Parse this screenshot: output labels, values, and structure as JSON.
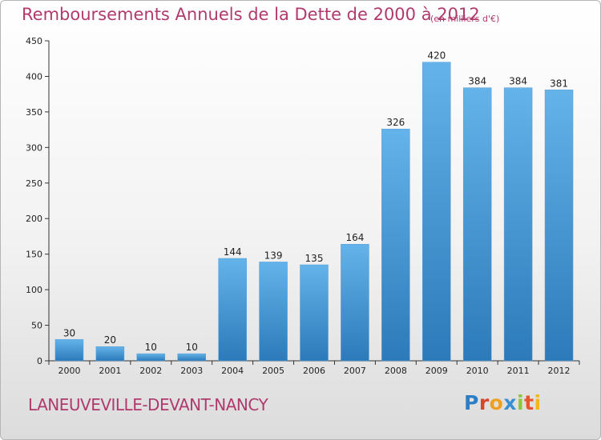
{
  "title": "Remboursements Annuels de la Dette de 2000 à 2012",
  "unit_note": "(en milliers d'€)",
  "commune": "LANEUVEVILLE-DEVANT-NANCY",
  "logo": {
    "text": "Proxiti",
    "letters": [
      "P",
      "r",
      "o",
      "x",
      "i",
      "t",
      "i"
    ]
  },
  "colors": {
    "bar_top": "#64b3ea",
    "bar_bottom": "#2c7ab9",
    "title": "#b03a6e"
  },
  "chart_data": {
    "type": "bar",
    "title": "Remboursements Annuels de la Dette de 2000 à 2012",
    "xlabel": "",
    "ylabel": "",
    "categories": [
      "2000",
      "2001",
      "2002",
      "2003",
      "2004",
      "2005",
      "2006",
      "2007",
      "2008",
      "2009",
      "2010",
      "2011",
      "2012"
    ],
    "values": [
      30,
      20,
      10,
      10,
      144,
      139,
      135,
      164,
      326,
      420,
      384,
      384,
      381
    ],
    "ylim": [
      0,
      450
    ],
    "yticks": [
      0,
      50,
      100,
      150,
      200,
      250,
      300,
      350,
      400,
      450
    ],
    "grid": false,
    "legend": "none"
  }
}
